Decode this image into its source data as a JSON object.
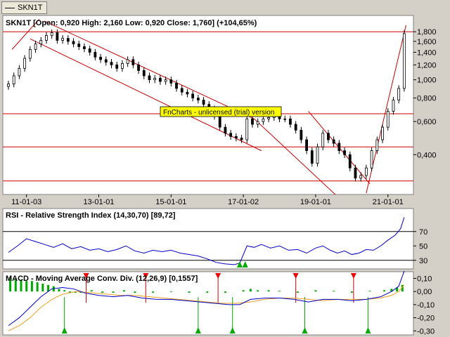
{
  "tab": {
    "label": "SKN1T"
  },
  "notice": "FnCharts - unlicensed (trial) version",
  "chart_data": [
    {
      "type": "candlestick",
      "title": "SKN1T [Open: 0,920  High: 2,160  Low: 0,920  Close: 1,760]  (+104,65%)",
      "scale": "log",
      "ylim": [
        0.25,
        2.16
      ],
      "y_ticks": [
        {
          "v": 0.4,
          "label": "0,400"
        },
        {
          "v": 0.6,
          "label": "0,600"
        },
        {
          "v": 0.8,
          "label": "0,800"
        },
        {
          "v": 1.0,
          "label": "1,000"
        },
        {
          "v": 1.2,
          "label": "1,200"
        },
        {
          "v": 1.4,
          "label": "1,400"
        },
        {
          "v": 1.6,
          "label": "1,600"
        },
        {
          "v": 1.8,
          "label": "1,800"
        }
      ],
      "x_ticks": [
        "11-01-03",
        "13-01-01",
        "15-01-01",
        "17-01-02",
        "19-01-01",
        "21-01-01"
      ],
      "x_range": [
        2010.5,
        2021.55
      ],
      "x_tick_years": [
        2011.0,
        2013.0,
        2015.0,
        2017.0,
        2019.0,
        2021.0
      ],
      "horizontal_lines": [
        1.8,
        0.66,
        0.44,
        0.29
      ],
      "trend_lines": [
        {
          "x1": 2010.6,
          "y1": 1.45,
          "x2": 2011.35,
          "y2": 2.1
        },
        {
          "x1": 2011.1,
          "y1": 1.65,
          "x2": 2017.5,
          "y2": 0.42
        },
        {
          "x1": 2011.5,
          "y1": 2.05,
          "x2": 2017.3,
          "y2": 0.62
        },
        {
          "x1": 2017.3,
          "y1": 0.62,
          "x2": 2019.6,
          "y2": 0.24
        },
        {
          "x1": 2018.8,
          "y1": 0.68,
          "x2": 2020.5,
          "y2": 0.28
        },
        {
          "x1": 2020.4,
          "y1": 0.25,
          "x2": 2021.5,
          "y2": 1.95
        }
      ],
      "series": [
        {
          "x": 2010.5,
          "v": 0.95
        },
        {
          "x": 2010.65,
          "v": 1.05
        },
        {
          "x": 2010.8,
          "v": 1.15
        },
        {
          "x": 2010.95,
          "v": 1.3
        },
        {
          "x": 2011.1,
          "v": 1.45
        },
        {
          "x": 2011.25,
          "v": 1.55
        },
        {
          "x": 2011.4,
          "v": 1.62
        },
        {
          "x": 2011.55,
          "v": 1.72
        },
        {
          "x": 2011.7,
          "v": 1.78
        },
        {
          "x": 2011.85,
          "v": 1.62
        },
        {
          "x": 2012.0,
          "v": 1.66
        },
        {
          "x": 2012.15,
          "v": 1.6
        },
        {
          "x": 2012.3,
          "v": 1.55
        },
        {
          "x": 2012.45,
          "v": 1.5
        },
        {
          "x": 2012.6,
          "v": 1.46
        },
        {
          "x": 2012.75,
          "v": 1.4
        },
        {
          "x": 2012.9,
          "v": 1.32
        },
        {
          "x": 2013.05,
          "v": 1.28
        },
        {
          "x": 2013.2,
          "v": 1.24
        },
        {
          "x": 2013.35,
          "v": 1.2
        },
        {
          "x": 2013.5,
          "v": 1.15
        },
        {
          "x": 2013.65,
          "v": 1.22
        },
        {
          "x": 2013.8,
          "v": 1.28
        },
        {
          "x": 2013.95,
          "v": 1.2
        },
        {
          "x": 2014.1,
          "v": 1.12
        },
        {
          "x": 2014.25,
          "v": 1.05
        },
        {
          "x": 2014.4,
          "v": 1.0
        },
        {
          "x": 2014.55,
          "v": 1.02
        },
        {
          "x": 2014.7,
          "v": 0.98
        },
        {
          "x": 2014.85,
          "v": 1.0
        },
        {
          "x": 2015.0,
          "v": 0.96
        },
        {
          "x": 2015.15,
          "v": 0.9
        },
        {
          "x": 2015.3,
          "v": 0.86
        },
        {
          "x": 2015.45,
          "v": 0.84
        },
        {
          "x": 2015.6,
          "v": 0.8
        },
        {
          "x": 2015.75,
          "v": 0.78
        },
        {
          "x": 2015.9,
          "v": 0.74
        },
        {
          "x": 2016.05,
          "v": 0.7
        },
        {
          "x": 2016.2,
          "v": 0.64
        },
        {
          "x": 2016.35,
          "v": 0.56
        },
        {
          "x": 2016.5,
          "v": 0.52
        },
        {
          "x": 2016.65,
          "v": 0.5
        },
        {
          "x": 2016.8,
          "v": 0.49
        },
        {
          "x": 2016.95,
          "v": 0.48
        },
        {
          "x": 2017.1,
          "v": 0.62
        },
        {
          "x": 2017.25,
          "v": 0.58
        },
        {
          "x": 2017.4,
          "v": 0.6
        },
        {
          "x": 2017.55,
          "v": 0.62
        },
        {
          "x": 2017.7,
          "v": 0.63
        },
        {
          "x": 2017.85,
          "v": 0.64
        },
        {
          "x": 2018.0,
          "v": 0.62
        },
        {
          "x": 2018.15,
          "v": 0.62
        },
        {
          "x": 2018.3,
          "v": 0.58
        },
        {
          "x": 2018.45,
          "v": 0.54
        },
        {
          "x": 2018.6,
          "v": 0.48
        },
        {
          "x": 2018.75,
          "v": 0.42
        },
        {
          "x": 2018.9,
          "v": 0.36
        },
        {
          "x": 2019.05,
          "v": 0.44
        },
        {
          "x": 2019.2,
          "v": 0.52
        },
        {
          "x": 2019.35,
          "v": 0.48
        },
        {
          "x": 2019.5,
          "v": 0.46
        },
        {
          "x": 2019.65,
          "v": 0.42
        },
        {
          "x": 2019.8,
          "v": 0.4
        },
        {
          "x": 2019.95,
          "v": 0.34
        },
        {
          "x": 2020.1,
          "v": 0.3
        },
        {
          "x": 2020.25,
          "v": 0.31
        },
        {
          "x": 2020.4,
          "v": 0.34
        },
        {
          "x": 2020.55,
          "v": 0.42
        },
        {
          "x": 2020.7,
          "v": 0.48
        },
        {
          "x": 2020.85,
          "v": 0.56
        },
        {
          "x": 2021.0,
          "v": 0.68
        },
        {
          "x": 2021.15,
          "v": 0.78
        },
        {
          "x": 2021.3,
          "v": 0.9
        },
        {
          "x": 2021.45,
          "v": 1.76
        }
      ]
    },
    {
      "type": "line",
      "title": "RSI - Relative Strength Index (14,30,70) [89,72]",
      "ylim": [
        20,
        100
      ],
      "y_ticks": [
        {
          "v": 30,
          "label": "30"
        },
        {
          "v": 50,
          "label": "50"
        },
        {
          "v": 70,
          "label": "70"
        }
      ],
      "horizontal_lines": [
        70,
        30
      ],
      "markers": [
        {
          "x": 2016.9,
          "dir": "up"
        },
        {
          "x": 2017.05,
          "dir": "up"
        }
      ],
      "series": [
        {
          "name": "RSI",
          "values": [
            {
              "x": 2010.5,
              "v": 41
            },
            {
              "x": 2010.75,
              "v": 50
            },
            {
              "x": 2011.0,
              "v": 60
            },
            {
              "x": 2011.25,
              "v": 56
            },
            {
              "x": 2011.5,
              "v": 52
            },
            {
              "x": 2011.75,
              "v": 48
            },
            {
              "x": 2012.0,
              "v": 53
            },
            {
              "x": 2012.25,
              "v": 46
            },
            {
              "x": 2012.5,
              "v": 49
            },
            {
              "x": 2012.75,
              "v": 44
            },
            {
              "x": 2013.0,
              "v": 46
            },
            {
              "x": 2013.25,
              "v": 42
            },
            {
              "x": 2013.5,
              "v": 45
            },
            {
              "x": 2013.75,
              "v": 50
            },
            {
              "x": 2014.0,
              "v": 43
            },
            {
              "x": 2014.25,
              "v": 40
            },
            {
              "x": 2014.5,
              "v": 44
            },
            {
              "x": 2014.75,
              "v": 42
            },
            {
              "x": 2015.0,
              "v": 44
            },
            {
              "x": 2015.25,
              "v": 40
            },
            {
              "x": 2015.5,
              "v": 38
            },
            {
              "x": 2015.75,
              "v": 36
            },
            {
              "x": 2016.0,
              "v": 32
            },
            {
              "x": 2016.25,
              "v": 27
            },
            {
              "x": 2016.5,
              "v": 25
            },
            {
              "x": 2016.75,
              "v": 24
            },
            {
              "x": 2016.9,
              "v": 26
            },
            {
              "x": 2017.1,
              "v": 50
            },
            {
              "x": 2017.3,
              "v": 48
            },
            {
              "x": 2017.5,
              "v": 52
            },
            {
              "x": 2017.75,
              "v": 47
            },
            {
              "x": 2018.0,
              "v": 50
            },
            {
              "x": 2018.25,
              "v": 44
            },
            {
              "x": 2018.5,
              "v": 45
            },
            {
              "x": 2018.75,
              "v": 40
            },
            {
              "x": 2019.0,
              "v": 47
            },
            {
              "x": 2019.2,
              "v": 50
            },
            {
              "x": 2019.4,
              "v": 44
            },
            {
              "x": 2019.6,
              "v": 40
            },
            {
              "x": 2019.8,
              "v": 43
            },
            {
              "x": 2020.0,
              "v": 38
            },
            {
              "x": 2020.2,
              "v": 40
            },
            {
              "x": 2020.4,
              "v": 45
            },
            {
              "x": 2020.6,
              "v": 44
            },
            {
              "x": 2020.8,
              "v": 50
            },
            {
              "x": 2021.0,
              "v": 58
            },
            {
              "x": 2021.2,
              "v": 65
            },
            {
              "x": 2021.35,
              "v": 74
            },
            {
              "x": 2021.45,
              "v": 89.72
            }
          ]
        }
      ]
    },
    {
      "type": "bar+line",
      "title": "MACD - Moving Average Conv. Div. (12,26,9) [0,1557]",
      "ylim": [
        -0.32,
        0.14
      ],
      "y_ticks": [
        {
          "v": 0.1,
          "label": "0,10"
        },
        {
          "v": 0.0,
          "label": "0,00"
        },
        {
          "v": -0.1,
          "label": "-0,10"
        },
        {
          "v": -0.2,
          "label": "-0,20"
        },
        {
          "v": -0.3,
          "label": "-0,30"
        }
      ],
      "down_markers": [
        2012.65,
        2014.3,
        2016.3,
        2018.45,
        2020.05
      ],
      "up_markers": [
        2012.05,
        2015.75,
        2016.7,
        2018.7,
        2020.45
      ],
      "macd": [
        {
          "x": 2010.5,
          "v": -0.26
        },
        {
          "x": 2010.8,
          "v": -0.2
        },
        {
          "x": 2011.1,
          "v": -0.12
        },
        {
          "x": 2011.4,
          "v": -0.04
        },
        {
          "x": 2011.7,
          "v": 0.02
        },
        {
          "x": 2012.0,
          "v": 0.03
        },
        {
          "x": 2012.3,
          "v": 0.02
        },
        {
          "x": 2012.6,
          "v": -0.01
        },
        {
          "x": 2013.0,
          "v": -0.03
        },
        {
          "x": 2013.4,
          "v": -0.04
        },
        {
          "x": 2013.8,
          "v": -0.03
        },
        {
          "x": 2014.2,
          "v": -0.05
        },
        {
          "x": 2014.6,
          "v": -0.06
        },
        {
          "x": 2015.0,
          "v": -0.06
        },
        {
          "x": 2015.4,
          "v": -0.07
        },
        {
          "x": 2015.8,
          "v": -0.08
        },
        {
          "x": 2016.2,
          "v": -0.09
        },
        {
          "x": 2016.6,
          "v": -0.1
        },
        {
          "x": 2016.9,
          "v": -0.1
        },
        {
          "x": 2017.2,
          "v": -0.06
        },
        {
          "x": 2017.6,
          "v": -0.05
        },
        {
          "x": 2018.0,
          "v": -0.05
        },
        {
          "x": 2018.4,
          "v": -0.06
        },
        {
          "x": 2018.8,
          "v": -0.08
        },
        {
          "x": 2019.2,
          "v": -0.06
        },
        {
          "x": 2019.6,
          "v": -0.06
        },
        {
          "x": 2020.0,
          "v": -0.07
        },
        {
          "x": 2020.4,
          "v": -0.06
        },
        {
          "x": 2020.8,
          "v": -0.04
        },
        {
          "x": 2021.1,
          "v": 0.0
        },
        {
          "x": 2021.3,
          "v": 0.04
        },
        {
          "x": 2021.45,
          "v": 0.1557
        }
      ],
      "signal": [
        {
          "x": 2010.5,
          "v": -0.3
        },
        {
          "x": 2010.8,
          "v": -0.26
        },
        {
          "x": 2011.1,
          "v": -0.2
        },
        {
          "x": 2011.4,
          "v": -0.12
        },
        {
          "x": 2011.7,
          "v": -0.06
        },
        {
          "x": 2012.0,
          "v": -0.02
        },
        {
          "x": 2012.4,
          "v": 0.0
        },
        {
          "x": 2012.8,
          "v": -0.01
        },
        {
          "x": 2013.2,
          "v": -0.02
        },
        {
          "x": 2013.6,
          "v": -0.03
        },
        {
          "x": 2014.0,
          "v": -0.03
        },
        {
          "x": 2014.4,
          "v": -0.04
        },
        {
          "x": 2014.8,
          "v": -0.05
        },
        {
          "x": 2015.2,
          "v": -0.06
        },
        {
          "x": 2015.6,
          "v": -0.07
        },
        {
          "x": 2016.0,
          "v": -0.08
        },
        {
          "x": 2016.4,
          "v": -0.09
        },
        {
          "x": 2016.8,
          "v": -0.09
        },
        {
          "x": 2017.2,
          "v": -0.08
        },
        {
          "x": 2017.6,
          "v": -0.06
        },
        {
          "x": 2018.0,
          "v": -0.05
        },
        {
          "x": 2018.4,
          "v": -0.05
        },
        {
          "x": 2018.8,
          "v": -0.06
        },
        {
          "x": 2019.2,
          "v": -0.07
        },
        {
          "x": 2019.6,
          "v": -0.06
        },
        {
          "x": 2020.0,
          "v": -0.06
        },
        {
          "x": 2020.4,
          "v": -0.06
        },
        {
          "x": 2020.8,
          "v": -0.05
        },
        {
          "x": 2021.1,
          "v": -0.03
        },
        {
          "x": 2021.3,
          "v": 0.0
        },
        {
          "x": 2021.45,
          "v": 0.05
        }
      ],
      "histogram": [
        {
          "x": 2010.55,
          "v": 0.11
        },
        {
          "x": 2010.7,
          "v": 0.1
        },
        {
          "x": 2010.85,
          "v": 0.09
        },
        {
          "x": 2011.0,
          "v": 0.08
        },
        {
          "x": 2011.15,
          "v": 0.08
        },
        {
          "x": 2011.3,
          "v": 0.07
        },
        {
          "x": 2011.45,
          "v": 0.06
        },
        {
          "x": 2011.6,
          "v": 0.05
        },
        {
          "x": 2011.75,
          "v": 0.04
        },
        {
          "x": 2011.9,
          "v": 0.02
        },
        {
          "x": 2012.05,
          "v": 0.01
        },
        {
          "x": 2012.2,
          "v": -0.01
        },
        {
          "x": 2012.35,
          "v": -0.01
        },
        {
          "x": 2012.5,
          "v": -0.01
        },
        {
          "x": 2012.8,
          "v": 0.01
        },
        {
          "x": 2013.1,
          "v": -0.01
        },
        {
          "x": 2013.4,
          "v": -0.01
        },
        {
          "x": 2013.7,
          "v": 0.01
        },
        {
          "x": 2014.0,
          "v": -0.01
        },
        {
          "x": 2014.5,
          "v": -0.01
        },
        {
          "x": 2015.0,
          "v": -0.005
        },
        {
          "x": 2015.5,
          "v": -0.01
        },
        {
          "x": 2016.0,
          "v": -0.01
        },
        {
          "x": 2016.5,
          "v": -0.01
        },
        {
          "x": 2017.0,
          "v": 0.01
        },
        {
          "x": 2017.2,
          "v": 0.02
        },
        {
          "x": 2017.4,
          "v": 0.01
        },
        {
          "x": 2017.7,
          "v": 0.01
        },
        {
          "x": 2018.0,
          "v": 0.005
        },
        {
          "x": 2018.5,
          "v": -0.01
        },
        {
          "x": 2019.0,
          "v": 0.01
        },
        {
          "x": 2019.5,
          "v": 0.005
        },
        {
          "x": 2020.0,
          "v": -0.01
        },
        {
          "x": 2020.5,
          "v": 0.005
        },
        {
          "x": 2020.9,
          "v": 0.01
        },
        {
          "x": 2021.1,
          "v": 0.02
        },
        {
          "x": 2021.25,
          "v": 0.03
        },
        {
          "x": 2021.4,
          "v": 0.05
        }
      ]
    }
  ]
}
